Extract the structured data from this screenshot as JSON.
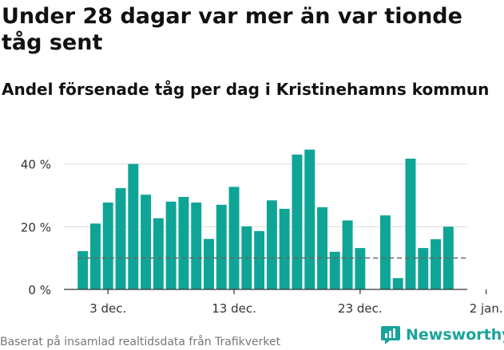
{
  "title": "Under 28 dagar var mer än var tionde tåg sent",
  "subtitle": "Andel försenade tåg per dag i Kristinehamns kommun",
  "footer": "Baserat på insamlad realtidsdata från Trafikverket",
  "brand": "Newsworthy",
  "colors": {
    "bar": "#0fa596",
    "grid": "#dddddd",
    "axis": "#333333",
    "reference": "#666666",
    "brand": "#1aa39a"
  },
  "chart_data": {
    "type": "bar",
    "title": "Under 28 dagar var mer än var tionde tåg sent",
    "subtitle": "Andel försenade tåg per dag i Kristinehamns kommun",
    "xlabel": "",
    "ylabel": "",
    "ylim": [
      0,
      45
    ],
    "yticks": [
      0,
      20,
      40
    ],
    "ytick_labels": [
      "0 %",
      "20 %",
      "40 %"
    ],
    "xlim_days": [
      -1.5,
      30.5
    ],
    "xtick_days": [
      2,
      12,
      22,
      32
    ],
    "xtick_labels": [
      "3 dec.",
      "13 dec.",
      "23 dec.",
      "2 jan."
    ],
    "categories": [
      "1 dec.",
      "2 dec.",
      "3 dec.",
      "4 dec.",
      "5 dec.",
      "6 dec.",
      "7 dec.",
      "8 dec.",
      "9 dec.",
      "10 dec.",
      "11 dec.",
      "12 dec.",
      "13 dec.",
      "14 dec.",
      "15 dec.",
      "16 dec.",
      "17 dec.",
      "18 dec.",
      "19 dec.",
      "20 dec.",
      "21 dec.",
      "22 dec.",
      "23 dec.",
      "24 dec.",
      "25 dec.",
      "26 dec.",
      "27 dec.",
      "28 dec.",
      "29 dec.",
      "30 dec."
    ],
    "values": [
      12.2,
      21,
      27.7,
      32.3,
      40,
      30.2,
      22.7,
      28,
      29.5,
      27.7,
      16.1,
      27,
      32.7,
      20.1,
      18.6,
      28.4,
      25.7,
      43,
      44.6,
      26.2,
      12,
      22,
      13.2,
      null,
      23.6,
      3.6,
      41.7,
      13.2,
      16,
      20
    ],
    "reference_line": 10,
    "grid": true,
    "legend": "none"
  }
}
